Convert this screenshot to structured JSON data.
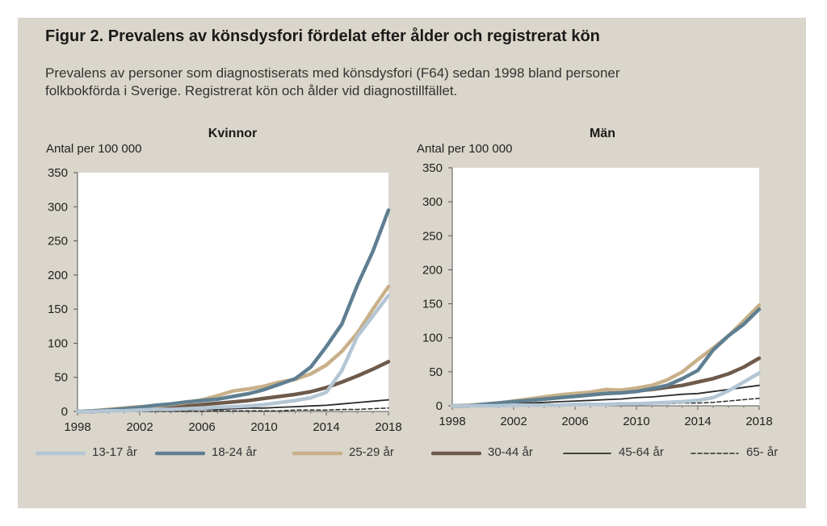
{
  "title": "Figur 2. Prevalens av könsdysfori fördelat efter ålder och registrerat kön",
  "subtitle_line1": "Prevalens av personer som diagnostiserats med könsdysfori (F64)  sedan 1998 bland personer",
  "subtitle_line2": "folkbokförda i Sverige. Registrerat kön och ålder vid diagnostillfället.",
  "colors": {
    "13-17 år": "#b4c6d3",
    "18-24 år": "#5f7f91",
    "25-29 år": "#c8b08a",
    "30-44 år": "#6e5a4b",
    "45-64 år": "#2b2b2b",
    "65- år": "#2b2b2b"
  },
  "legend": [
    {
      "label": "13-17 år",
      "style": "thick"
    },
    {
      "label": "18-24 år",
      "style": "thick"
    },
    {
      "label": "25-29 år",
      "style": "thick"
    },
    {
      "label": "30-44 år",
      "style": "thick"
    },
    {
      "label": "45-64 år",
      "style": "thin"
    },
    {
      "label": "65- år",
      "style": "dashed"
    }
  ],
  "chart_data": [
    {
      "type": "line",
      "title": "Kvinnor",
      "ylabel": "Antal per 100 000",
      "ylim": [
        0,
        350
      ],
      "yticks": [
        0,
        50,
        100,
        150,
        200,
        250,
        300,
        350
      ],
      "xlim": [
        1998,
        2018
      ],
      "xticks": [
        1998,
        2002,
        2006,
        2010,
        2014,
        2018
      ],
      "x": [
        1998,
        1999,
        2000,
        2001,
        2002,
        2003,
        2004,
        2005,
        2006,
        2007,
        2008,
        2009,
        2010,
        2011,
        2012,
        2013,
        2014,
        2015,
        2016,
        2017,
        2018
      ],
      "series": [
        {
          "name": "13-17 år",
          "values": [
            0,
            0,
            1,
            1,
            2,
            3,
            3,
            4,
            5,
            6,
            7,
            8,
            10,
            13,
            16,
            20,
            28,
            60,
            110,
            140,
            170
          ]
        },
        {
          "name": "18-24 år",
          "values": [
            0,
            1,
            2,
            4,
            6,
            9,
            11,
            14,
            16,
            18,
            22,
            26,
            32,
            40,
            48,
            65,
            95,
            128,
            185,
            235,
            295
          ]
        },
        {
          "name": "25-29 år",
          "values": [
            0,
            1,
            3,
            5,
            7,
            8,
            10,
            13,
            17,
            23,
            30,
            33,
            37,
            43,
            47,
            55,
            68,
            88,
            115,
            150,
            183
          ]
        },
        {
          "name": "30-44 år",
          "values": [
            0,
            0,
            1,
            2,
            3,
            4,
            6,
            8,
            10,
            12,
            14,
            16,
            19,
            22,
            25,
            29,
            35,
            43,
            52,
            62,
            73
          ]
        },
        {
          "name": "45-64 år",
          "values": [
            0,
            0,
            0,
            1,
            1,
            1,
            2,
            2,
            3,
            3,
            4,
            5,
            5,
            6,
            7,
            8,
            9,
            11,
            13,
            15,
            17
          ]
        },
        {
          "name": "65- år",
          "values": [
            0,
            0,
            0,
            0,
            0,
            0,
            0,
            0,
            0,
            1,
            1,
            1,
            1,
            1,
            2,
            2,
            2,
            3,
            3,
            4,
            5
          ]
        }
      ]
    },
    {
      "type": "line",
      "title": "Män",
      "ylabel": "Antal per 100 000",
      "ylim": [
        0,
        350
      ],
      "yticks": [
        0,
        50,
        100,
        150,
        200,
        250,
        300,
        350
      ],
      "xlim": [
        1998,
        2018
      ],
      "xticks": [
        1998,
        2002,
        2006,
        2010,
        2014,
        2018
      ],
      "x": [
        1998,
        1999,
        2000,
        2001,
        2002,
        2003,
        2004,
        2005,
        2006,
        2007,
        2008,
        2009,
        2010,
        2011,
        2012,
        2013,
        2014,
        2015,
        2016,
        2017,
        2018
      ],
      "series": [
        {
          "name": "13-17 år",
          "values": [
            0,
            0,
            0,
            0,
            1,
            1,
            1,
            1,
            2,
            2,
            2,
            3,
            3,
            4,
            5,
            6,
            8,
            12,
            22,
            35,
            48
          ]
        },
        {
          "name": "18-24 år",
          "values": [
            0,
            0,
            2,
            4,
            6,
            8,
            10,
            12,
            14,
            16,
            18,
            19,
            21,
            25,
            30,
            40,
            52,
            82,
            103,
            120,
            142
          ]
        },
        {
          "name": "25-29 år",
          "values": [
            0,
            1,
            2,
            4,
            7,
            10,
            13,
            16,
            18,
            20,
            24,
            23,
            26,
            30,
            38,
            50,
            68,
            85,
            103,
            125,
            148
          ]
        },
        {
          "name": "30-44 år",
          "values": [
            0,
            0,
            2,
            4,
            6,
            8,
            10,
            12,
            14,
            16,
            18,
            20,
            22,
            24,
            27,
            30,
            35,
            40,
            47,
            57,
            70
          ]
        },
        {
          "name": "45-64 år",
          "values": [
            0,
            0,
            1,
            2,
            3,
            4,
            5,
            6,
            7,
            8,
            9,
            10,
            12,
            13,
            15,
            17,
            18,
            21,
            24,
            27,
            30
          ]
        },
        {
          "name": "65- år",
          "values": [
            0,
            0,
            0,
            0,
            0,
            1,
            1,
            1,
            1,
            1,
            2,
            2,
            2,
            3,
            3,
            4,
            4,
            5,
            7,
            9,
            11
          ]
        }
      ]
    }
  ]
}
